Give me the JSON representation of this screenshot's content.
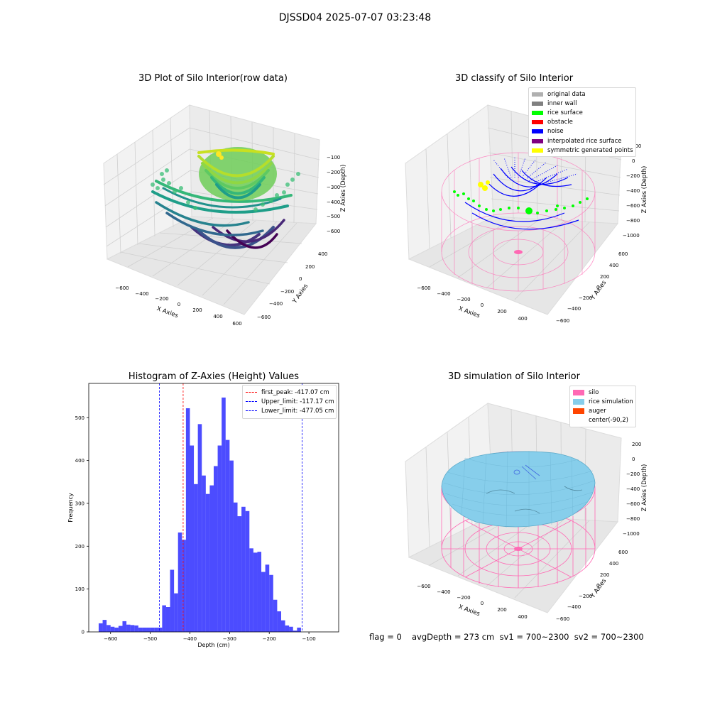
{
  "figure_title": "DJSSD04 2025-07-07 03:23:48",
  "panels": {
    "raw": {
      "title": "3D Plot of Silo Interior(row data)",
      "xlabel": "X Axies",
      "ylabel": "Y Axies",
      "zlabel": "Z Axies (Depth)",
      "xticks": [
        "−600",
        "−400",
        "−200",
        "0",
        "200",
        "400",
        "600"
      ],
      "yticks": [
        "400",
        "200",
        "0",
        "−200",
        "−400",
        "−600"
      ],
      "zticks": [
        "−100",
        "−200",
        "−300",
        "−400",
        "−500",
        "−600"
      ]
    },
    "classify": {
      "title": "3D classify of Silo Interior",
      "xlabel": "X Axies",
      "ylabel": "Y Axies",
      "zlabel": "Z Axies (Depth)",
      "xticks": [
        "−600",
        "−400",
        "−200",
        "0",
        "200",
        "400"
      ],
      "yticks": [
        "600",
        "400",
        "200",
        "0",
        "−200",
        "−400",
        "−600"
      ],
      "zticks": [
        "200",
        "0",
        "−200",
        "−400",
        "−600",
        "−800",
        "−1000"
      ],
      "legend": [
        {
          "label": "original data",
          "color": "#b0b0b0"
        },
        {
          "label": "inner wall",
          "color": "#808080"
        },
        {
          "label": "rice surface",
          "color": "#00ff00"
        },
        {
          "label": "obstacle",
          "color": "#ff0000"
        },
        {
          "label": "noise",
          "color": "#0000ff"
        },
        {
          "label": "interpolated rice surface",
          "color": "#800080"
        },
        {
          "label": "symmetric generated points",
          "color": "#ffff00"
        }
      ]
    },
    "simulation": {
      "title": "3D simulation of Silo Interior",
      "xlabel": "X Axies",
      "ylabel": "Y Axies",
      "zlabel": "Z Axies (Depth)",
      "xticks": [
        "−600",
        "−400",
        "−200",
        "0",
        "200",
        "400"
      ],
      "yticks": [
        "600",
        "400",
        "200",
        "0",
        "−200",
        "−400",
        "−600"
      ],
      "zticks": [
        "200",
        "0",
        "−200",
        "−400",
        "−600",
        "−800",
        "−1000"
      ],
      "legend": [
        {
          "label": "silo",
          "color": "#ff69b4"
        },
        {
          "label": "rice simulation",
          "color": "#87ceeb"
        },
        {
          "label": "auger",
          "color": "#ff4500"
        },
        {
          "label": "center(-90,2)",
          "color": "#ffffff"
        }
      ]
    }
  },
  "footer": {
    "flag": "flag = 0",
    "stats": "avgDepth = 273 cm  sv1 = 700~2300  sv2 = 700~2300"
  },
  "chart_data": {
    "type": "bar",
    "title": "Histogram of Z-Axies (Height) Values",
    "xlabel": "Depth (cm)",
    "ylabel": "Frequency",
    "xlim": [
      -655,
      -25
    ],
    "ylim": [
      0,
      580
    ],
    "xticks": [
      -600,
      -500,
      -400,
      -300,
      -200,
      -100
    ],
    "xtick_labels": [
      "−600",
      "−500",
      "−400",
      "−300",
      "−200",
      "−100"
    ],
    "yticks": [
      0,
      100,
      200,
      300,
      400,
      500
    ],
    "bar_color": "#0000ff",
    "bins": [
      {
        "x0": -630,
        "x1": -620,
        "value": 20
      },
      {
        "x0": -620,
        "x1": -610,
        "value": 28
      },
      {
        "x0": -610,
        "x1": -600,
        "value": 16
      },
      {
        "x0": -600,
        "x1": -590,
        "value": 12
      },
      {
        "x0": -590,
        "x1": -580,
        "value": 10
      },
      {
        "x0": -580,
        "x1": -570,
        "value": 14
      },
      {
        "x0": -570,
        "x1": -560,
        "value": 25
      },
      {
        "x0": -560,
        "x1": -550,
        "value": 17
      },
      {
        "x0": -550,
        "x1": -540,
        "value": 16
      },
      {
        "x0": -540,
        "x1": -530,
        "value": 15
      },
      {
        "x0": -530,
        "x1": -520,
        "value": 10
      },
      {
        "x0": -520,
        "x1": -510,
        "value": 10
      },
      {
        "x0": -510,
        "x1": -500,
        "value": 10
      },
      {
        "x0": -500,
        "x1": -490,
        "value": 10
      },
      {
        "x0": -490,
        "x1": -480,
        "value": 10
      },
      {
        "x0": -480,
        "x1": -470,
        "value": 10
      },
      {
        "x0": -470,
        "x1": -460,
        "value": 62
      },
      {
        "x0": -460,
        "x1": -450,
        "value": 58
      },
      {
        "x0": -450,
        "x1": -440,
        "value": 145
      },
      {
        "x0": -440,
        "x1": -430,
        "value": 90
      },
      {
        "x0": -430,
        "x1": -420,
        "value": 232
      },
      {
        "x0": -420,
        "x1": -410,
        "value": 215
      },
      {
        "x0": -410,
        "x1": -400,
        "value": 522
      },
      {
        "x0": -400,
        "x1": -390,
        "value": 435
      },
      {
        "x0": -390,
        "x1": -380,
        "value": 345
      },
      {
        "x0": -380,
        "x1": -370,
        "value": 485
      },
      {
        "x0": -370,
        "x1": -360,
        "value": 365
      },
      {
        "x0": -360,
        "x1": -350,
        "value": 322
      },
      {
        "x0": -350,
        "x1": -340,
        "value": 342
      },
      {
        "x0": -340,
        "x1": -330,
        "value": 387
      },
      {
        "x0": -330,
        "x1": -320,
        "value": 435
      },
      {
        "x0": -320,
        "x1": -310,
        "value": 547
      },
      {
        "x0": -310,
        "x1": -300,
        "value": 448
      },
      {
        "x0": -300,
        "x1": -290,
        "value": 400
      },
      {
        "x0": -290,
        "x1": -280,
        "value": 302
      },
      {
        "x0": -280,
        "x1": -270,
        "value": 270
      },
      {
        "x0": -270,
        "x1": -260,
        "value": 292
      },
      {
        "x0": -260,
        "x1": -250,
        "value": 282
      },
      {
        "x0": -250,
        "x1": -240,
        "value": 195
      },
      {
        "x0": -240,
        "x1": -230,
        "value": 185
      },
      {
        "x0": -230,
        "x1": -220,
        "value": 187
      },
      {
        "x0": -220,
        "x1": -210,
        "value": 140
      },
      {
        "x0": -210,
        "x1": -200,
        "value": 157
      },
      {
        "x0": -200,
        "x1": -190,
        "value": 133
      },
      {
        "x0": -190,
        "x1": -180,
        "value": 75
      },
      {
        "x0": -180,
        "x1": -170,
        "value": 48
      },
      {
        "x0": -170,
        "x1": -160,
        "value": 27
      },
      {
        "x0": -160,
        "x1": -150,
        "value": 15
      },
      {
        "x0": -150,
        "x1": -140,
        "value": 12
      },
      {
        "x0": -140,
        "x1": -130,
        "value": 3
      },
      {
        "x0": -130,
        "x1": -120,
        "value": 10
      }
    ],
    "vlines": [
      {
        "label": "first_peak: -417.07 cm",
        "x": -417.07,
        "color": "#ff0000"
      },
      {
        "label": "Upper_limit: -117.17 cm",
        "x": -117.17,
        "color": "#0000ff"
      },
      {
        "label": "Lower_limit: -477.05 cm",
        "x": -477.05,
        "color": "#0000ff"
      }
    ]
  }
}
